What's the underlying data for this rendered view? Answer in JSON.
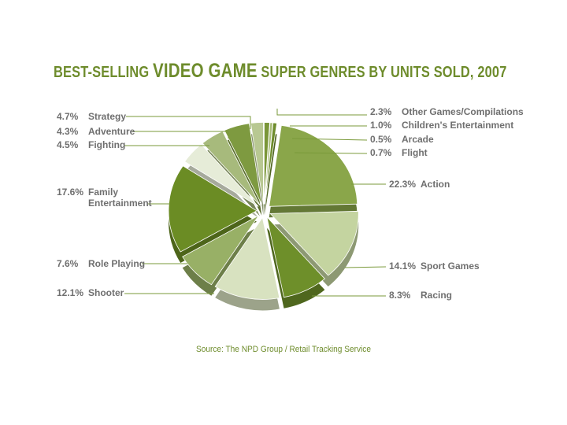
{
  "title": {
    "part1": "BEST-SELLING ",
    "emphasis": "VIDEO GAME",
    "part2": " SUPER GENRES BY UNITS SOLD, 2007"
  },
  "source": "Source: The NPD Group / Retail Tracking Service",
  "colors": {
    "title": "#6e8c2c",
    "label": "#6f6f6f",
    "leader": "#7a9a3a"
  },
  "chart_data": {
    "type": "pie",
    "title": "BEST-SELLING VIDEO GAME SUPER GENRES BY UNITS SOLD, 2007",
    "slices": [
      {
        "label": "Action",
        "pct_label": "22.3%",
        "value": 22.3,
        "color": "#8aa64a"
      },
      {
        "label": "Sport Games",
        "pct_label": "14.1%",
        "value": 14.1,
        "color": "#c4d4a0"
      },
      {
        "label": "Racing",
        "pct_label": "8.3%",
        "value": 8.3,
        "color": "#6e8f2a"
      },
      {
        "label": "Shooter",
        "pct_label": "12.1%",
        "value": 12.1,
        "color": "#d8e2c0"
      },
      {
        "label": "Role Playing",
        "pct_label": "7.6%",
        "value": 7.6,
        "color": "#98b066"
      },
      {
        "label": "Family Entertainment",
        "pct_label": "17.6%",
        "value": 17.6,
        "color": "#6b8c24"
      },
      {
        "label": "Fighting",
        "pct_label": "4.5%",
        "value": 4.5,
        "color": "#e6ecd8"
      },
      {
        "label": "Adventure",
        "pct_label": "4.3%",
        "value": 4.3,
        "color": "#a7ba7c"
      },
      {
        "label": "Strategy",
        "pct_label": "4.7%",
        "value": 4.7,
        "color": "#7e9a40"
      },
      {
        "label": "Other Games/Compilations",
        "pct_label": "2.3%",
        "value": 2.3,
        "color": "#b8c892"
      },
      {
        "label": "Children's Entertainment",
        "pct_label": "1.0%",
        "value": 1.0,
        "color": "#7a9638"
      },
      {
        "label": "Arcade",
        "pct_label": "0.5%",
        "value": 0.5,
        "color": "#a8bc78"
      },
      {
        "label": "Flight",
        "pct_label": "0.7%",
        "value": 0.7,
        "color": "#6e8c2c"
      }
    ]
  }
}
